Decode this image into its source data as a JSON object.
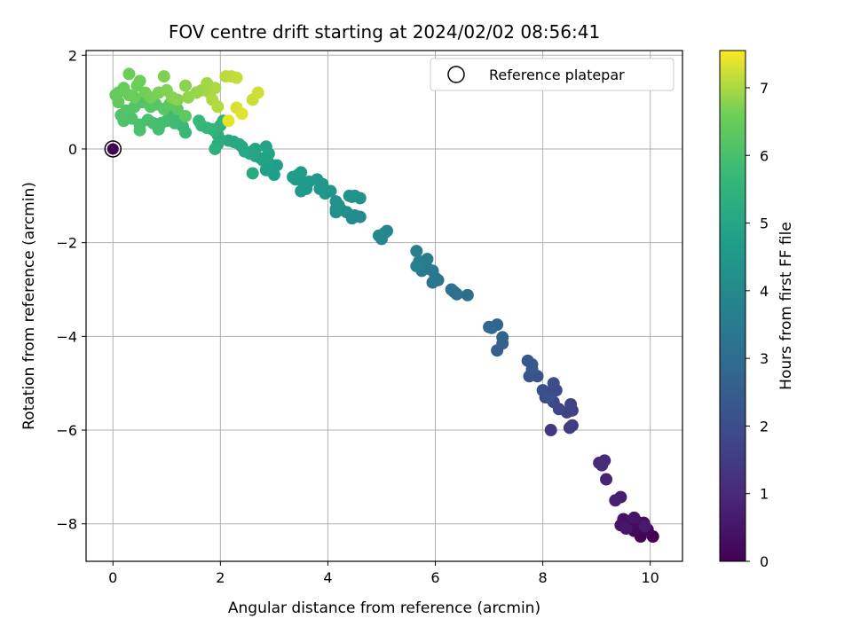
{
  "chart_data": {
    "type": "scatter",
    "title": "FOV centre drift starting at 2024/02/02 08:56:41",
    "xlabel": "Angular distance from reference (arcmin)",
    "ylabel": "Rotation from reference (arcmin)",
    "xlim": [
      -0.5,
      10.6
    ],
    "ylim": [
      -8.8,
      2.1
    ],
    "xticks": [
      0,
      2,
      4,
      6,
      8,
      10
    ],
    "xtick_labels": [
      "0",
      "2",
      "4",
      "6",
      "8",
      "10"
    ],
    "yticks": [
      2,
      0,
      -2,
      -4,
      -6,
      -8
    ],
    "ytick_labels": [
      "2",
      "0",
      "−2",
      "−4",
      "−6",
      "−8"
    ],
    "grid": true,
    "legend": {
      "position": "top-right",
      "entries": [
        "Reference platepar"
      ]
    },
    "reference_point": {
      "x": 0,
      "y": 0
    },
    "colorbar": {
      "label": "Hours from first FF file",
      "colormap": "viridis",
      "range": [
        0,
        7.55
      ],
      "ticks": [
        0,
        1,
        2,
        3,
        4,
        5,
        6,
        7
      ],
      "tick_labels": [
        "0",
        "1",
        "2",
        "3",
        "4",
        "5",
        "6",
        "7"
      ]
    },
    "points": [
      {
        "x": 10.05,
        "y": -8.27,
        "t": 0.03
      },
      {
        "x": 9.82,
        "y": -8.27,
        "t": 0.1
      },
      {
        "x": 9.95,
        "y": -8.12,
        "t": 0.15
      },
      {
        "x": 9.7,
        "y": -8.15,
        "t": 0.2
      },
      {
        "x": 9.6,
        "y": -8.05,
        "t": 0.25
      },
      {
        "x": 9.75,
        "y": -7.95,
        "t": 0.3
      },
      {
        "x": 9.88,
        "y": -7.98,
        "t": 0.35
      },
      {
        "x": 9.5,
        "y": -7.9,
        "t": 0.4
      },
      {
        "x": 9.45,
        "y": -8.03,
        "t": 0.45
      },
      {
        "x": 9.7,
        "y": -7.87,
        "t": 0.5
      },
      {
        "x": 9.55,
        "y": -8.1,
        "t": 0.55
      },
      {
        "x": 9.9,
        "y": -8.05,
        "t": 0.6
      },
      {
        "x": 9.45,
        "y": -7.43,
        "t": 0.7
      },
      {
        "x": 9.35,
        "y": -7.5,
        "t": 0.75
      },
      {
        "x": 9.18,
        "y": -7.05,
        "t": 0.85
      },
      {
        "x": 9.05,
        "y": -6.7,
        "t": 0.95
      },
      {
        "x": 9.15,
        "y": -6.65,
        "t": 1.0
      },
      {
        "x": 9.1,
        "y": -6.75,
        "t": 1.05
      },
      {
        "x": 8.15,
        "y": -6.0,
        "t": 1.4
      },
      {
        "x": 8.5,
        "y": -5.95,
        "t": 1.5
      },
      {
        "x": 8.55,
        "y": -5.9,
        "t": 1.55
      },
      {
        "x": 8.45,
        "y": -5.62,
        "t": 1.6
      },
      {
        "x": 8.55,
        "y": -5.58,
        "t": 1.65
      },
      {
        "x": 8.52,
        "y": -5.45,
        "t": 1.7
      },
      {
        "x": 8.3,
        "y": -5.55,
        "t": 1.75
      },
      {
        "x": 8.2,
        "y": -5.4,
        "t": 1.8
      },
      {
        "x": 8.05,
        "y": -5.3,
        "t": 1.85
      },
      {
        "x": 8.1,
        "y": -5.2,
        "t": 1.9
      },
      {
        "x": 8.25,
        "y": -5.15,
        "t": 1.95
      },
      {
        "x": 8.0,
        "y": -5.15,
        "t": 2.0
      },
      {
        "x": 8.2,
        "y": -5.0,
        "t": 2.05
      },
      {
        "x": 8.1,
        "y": -5.3,
        "t": 2.1
      },
      {
        "x": 7.9,
        "y": -4.85,
        "t": 2.2
      },
      {
        "x": 7.75,
        "y": -4.85,
        "t": 2.25
      },
      {
        "x": 7.8,
        "y": -4.7,
        "t": 2.3
      },
      {
        "x": 7.72,
        "y": -4.52,
        "t": 2.35
      },
      {
        "x": 7.8,
        "y": -4.6,
        "t": 2.4
      },
      {
        "x": 7.15,
        "y": -4.3,
        "t": 2.55
      },
      {
        "x": 7.25,
        "y": -4.15,
        "t": 2.6
      },
      {
        "x": 7.25,
        "y": -4.02,
        "t": 2.65
      },
      {
        "x": 7.15,
        "y": -3.75,
        "t": 2.75
      },
      {
        "x": 7.05,
        "y": -3.82,
        "t": 2.8
      },
      {
        "x": 7.0,
        "y": -3.8,
        "t": 2.85
      },
      {
        "x": 6.6,
        "y": -3.12,
        "t": 3.0
      },
      {
        "x": 6.4,
        "y": -3.1,
        "t": 3.05
      },
      {
        "x": 6.35,
        "y": -3.05,
        "t": 3.1
      },
      {
        "x": 6.3,
        "y": -3.0,
        "t": 3.15
      },
      {
        "x": 6.05,
        "y": -2.8,
        "t": 3.25
      },
      {
        "x": 5.95,
        "y": -2.85,
        "t": 3.3
      },
      {
        "x": 6.0,
        "y": -2.75,
        "t": 3.35
      },
      {
        "x": 5.95,
        "y": -2.6,
        "t": 3.4
      },
      {
        "x": 5.85,
        "y": -2.55,
        "t": 3.45
      },
      {
        "x": 5.75,
        "y": -2.6,
        "t": 3.5
      },
      {
        "x": 5.85,
        "y": -2.35,
        "t": 3.55
      },
      {
        "x": 5.7,
        "y": -2.4,
        "t": 3.6
      },
      {
        "x": 5.65,
        "y": -2.5,
        "t": 3.65
      },
      {
        "x": 5.65,
        "y": -2.18,
        "t": 3.7
      },
      {
        "x": 5.0,
        "y": -1.92,
        "t": 3.85
      },
      {
        "x": 5.05,
        "y": -1.8,
        "t": 3.9
      },
      {
        "x": 5.1,
        "y": -1.75,
        "t": 3.95
      },
      {
        "x": 4.95,
        "y": -1.85,
        "t": 4.0
      },
      {
        "x": 4.6,
        "y": -1.45,
        "t": 4.05
      },
      {
        "x": 4.5,
        "y": -1.42,
        "t": 4.1
      },
      {
        "x": 4.45,
        "y": -1.48,
        "t": 4.12
      },
      {
        "x": 4.35,
        "y": -1.35,
        "t": 4.15
      },
      {
        "x": 4.25,
        "y": -1.3,
        "t": 4.18
      },
      {
        "x": 4.15,
        "y": -1.35,
        "t": 4.2
      },
      {
        "x": 4.2,
        "y": -1.2,
        "t": 4.22
      },
      {
        "x": 4.15,
        "y": -1.12,
        "t": 4.25
      },
      {
        "x": 4.15,
        "y": -1.28,
        "t": 4.27
      },
      {
        "x": 4.6,
        "y": -1.05,
        "t": 4.3
      },
      {
        "x": 4.5,
        "y": -1.0,
        "t": 4.32
      },
      {
        "x": 4.45,
        "y": -1.02,
        "t": 4.35
      },
      {
        "x": 4.4,
        "y": -1.0,
        "t": 4.38
      },
      {
        "x": 4.05,
        "y": -0.9,
        "t": 4.4
      },
      {
        "x": 3.95,
        "y": -0.95,
        "t": 4.42
      },
      {
        "x": 3.85,
        "y": -0.85,
        "t": 4.45
      },
      {
        "x": 3.9,
        "y": -0.75,
        "t": 4.48
      },
      {
        "x": 3.8,
        "y": -0.65,
        "t": 4.5
      },
      {
        "x": 3.65,
        "y": -0.7,
        "t": 4.52
      },
      {
        "x": 3.55,
        "y": -0.72,
        "t": 4.55
      },
      {
        "x": 3.6,
        "y": -0.85,
        "t": 4.57
      },
      {
        "x": 3.5,
        "y": -0.9,
        "t": 4.6
      },
      {
        "x": 3.4,
        "y": -0.65,
        "t": 4.62
      },
      {
        "x": 3.45,
        "y": -0.55,
        "t": 4.65
      },
      {
        "x": 3.5,
        "y": -0.5,
        "t": 4.67
      },
      {
        "x": 3.35,
        "y": -0.6,
        "t": 4.7
      },
      {
        "x": 3.05,
        "y": -0.35,
        "t": 4.72
      },
      {
        "x": 3.0,
        "y": -0.55,
        "t": 4.75
      },
      {
        "x": 2.95,
        "y": -0.4,
        "t": 4.77
      },
      {
        "x": 2.85,
        "y": -0.45,
        "t": 4.8
      },
      {
        "x": 2.9,
        "y": -0.3,
        "t": 4.82
      },
      {
        "x": 2.8,
        "y": -0.25,
        "t": 4.85
      },
      {
        "x": 2.75,
        "y": -0.2,
        "t": 4.87
      },
      {
        "x": 2.9,
        "y": -0.1,
        "t": 4.9
      },
      {
        "x": 2.85,
        "y": 0.05,
        "t": 4.92
      },
      {
        "x": 2.65,
        "y": -0.15,
        "t": 4.95
      },
      {
        "x": 2.6,
        "y": -0.05,
        "t": 4.97
      },
      {
        "x": 2.65,
        "y": 0.0,
        "t": 5.0
      },
      {
        "x": 2.55,
        "y": -0.1,
        "t": 5.02
      },
      {
        "x": 2.45,
        "y": -0.05,
        "t": 5.05
      },
      {
        "x": 2.4,
        "y": 0.05,
        "t": 5.07
      },
      {
        "x": 2.35,
        "y": 0.1,
        "t": 5.1
      },
      {
        "x": 2.25,
        "y": 0.15,
        "t": 5.12
      },
      {
        "x": 2.15,
        "y": 0.18,
        "t": 5.15
      },
      {
        "x": 2.6,
        "y": -0.52,
        "t": 5.17
      },
      {
        "x": 2.0,
        "y": 0.2,
        "t": 5.2
      },
      {
        "x": 1.95,
        "y": 0.3,
        "t": 5.25
      },
      {
        "x": 1.95,
        "y": 0.1,
        "t": 5.3
      },
      {
        "x": 1.9,
        "y": 0.0,
        "t": 5.35
      },
      {
        "x": 1.9,
        "y": 0.38,
        "t": 5.4
      },
      {
        "x": 2.0,
        "y": 0.5,
        "t": 5.45
      },
      {
        "x": 2.05,
        "y": 0.6,
        "t": 5.5
      },
      {
        "x": 1.85,
        "y": 0.42,
        "t": 5.55
      },
      {
        "x": 1.75,
        "y": 0.45,
        "t": 5.6
      },
      {
        "x": 1.65,
        "y": 0.5,
        "t": 5.63
      },
      {
        "x": 1.6,
        "y": 0.6,
        "t": 5.66
      },
      {
        "x": 1.35,
        "y": 0.35,
        "t": 5.7
      },
      {
        "x": 1.3,
        "y": 0.48,
        "t": 5.73
      },
      {
        "x": 1.25,
        "y": 0.6,
        "t": 5.76
      },
      {
        "x": 1.15,
        "y": 0.55,
        "t": 5.8
      },
      {
        "x": 1.1,
        "y": 0.72,
        "t": 5.83
      },
      {
        "x": 1.0,
        "y": 0.6,
        "t": 5.86
      },
      {
        "x": 0.9,
        "y": 0.55,
        "t": 5.9
      },
      {
        "x": 0.85,
        "y": 0.42,
        "t": 5.93
      },
      {
        "x": 0.75,
        "y": 0.55,
        "t": 5.96
      },
      {
        "x": 0.65,
        "y": 0.62,
        "t": 6.0
      },
      {
        "x": 0.5,
        "y": 0.52,
        "t": 6.02
      },
      {
        "x": 0.5,
        "y": 0.4,
        "t": 6.05
      },
      {
        "x": 0.35,
        "y": 0.65,
        "t": 6.08
      },
      {
        "x": 0.2,
        "y": 0.6,
        "t": 6.1
      },
      {
        "x": 0.15,
        "y": 0.72,
        "t": 6.12
      },
      {
        "x": 0.25,
        "y": 0.82,
        "t": 6.15
      },
      {
        "x": 0.4,
        "y": 0.9,
        "t": 6.18
      },
      {
        "x": 0.55,
        "y": 1.0,
        "t": 6.2
      },
      {
        "x": 0.7,
        "y": 0.9,
        "t": 6.22
      },
      {
        "x": 0.8,
        "y": 0.95,
        "t": 6.25
      },
      {
        "x": 0.95,
        "y": 0.85,
        "t": 6.27
      },
      {
        "x": 1.05,
        "y": 0.95,
        "t": 6.3
      },
      {
        "x": 1.2,
        "y": 0.85,
        "t": 6.33
      },
      {
        "x": 1.35,
        "y": 0.7,
        "t": 6.36
      },
      {
        "x": 0.1,
        "y": 1.0,
        "t": 6.4
      },
      {
        "x": 0.05,
        "y": 1.15,
        "t": 6.42
      },
      {
        "x": 0.1,
        "y": 1.2,
        "t": 6.45
      },
      {
        "x": 0.2,
        "y": 1.3,
        "t": 6.47
      },
      {
        "x": 0.3,
        "y": 1.15,
        "t": 6.5
      },
      {
        "x": 0.4,
        "y": 1.1,
        "t": 6.52
      },
      {
        "x": 0.45,
        "y": 1.35,
        "t": 6.55
      },
      {
        "x": 0.3,
        "y": 1.6,
        "t": 6.57
      },
      {
        "x": 0.5,
        "y": 1.45,
        "t": 6.6
      },
      {
        "x": 0.6,
        "y": 1.2,
        "t": 6.62
      },
      {
        "x": 0.7,
        "y": 1.1,
        "t": 6.65
      },
      {
        "x": 0.85,
        "y": 1.2,
        "t": 6.67
      },
      {
        "x": 0.95,
        "y": 1.55,
        "t": 6.7
      },
      {
        "x": 1.0,
        "y": 1.25,
        "t": 6.72
      },
      {
        "x": 1.1,
        "y": 1.1,
        "t": 6.75
      },
      {
        "x": 1.2,
        "y": 1.05,
        "t": 6.77
      },
      {
        "x": 1.35,
        "y": 1.35,
        "t": 6.8
      },
      {
        "x": 1.4,
        "y": 1.1,
        "t": 6.83
      },
      {
        "x": 1.55,
        "y": 1.2,
        "t": 6.86
      },
      {
        "x": 1.65,
        "y": 1.25,
        "t": 6.9
      },
      {
        "x": 1.75,
        "y": 1.4,
        "t": 6.93
      },
      {
        "x": 1.8,
        "y": 1.2,
        "t": 6.96
      },
      {
        "x": 1.9,
        "y": 1.3,
        "t": 7.0
      },
      {
        "x": 1.85,
        "y": 1.05,
        "t": 7.03
      },
      {
        "x": 1.95,
        "y": 0.9,
        "t": 7.06
      },
      {
        "x": 2.1,
        "y": 1.55,
        "t": 7.1
      },
      {
        "x": 2.2,
        "y": 1.55,
        "t": 7.13
      },
      {
        "x": 2.3,
        "y": 1.52,
        "t": 7.16
      },
      {
        "x": 2.6,
        "y": 1.05,
        "t": 7.2
      },
      {
        "x": 2.7,
        "y": 1.2,
        "t": 7.25
      },
      {
        "x": 2.3,
        "y": 0.88,
        "t": 7.3
      },
      {
        "x": 2.4,
        "y": 0.75,
        "t": 7.35
      },
      {
        "x": 2.15,
        "y": 0.6,
        "t": 7.4
      }
    ]
  }
}
